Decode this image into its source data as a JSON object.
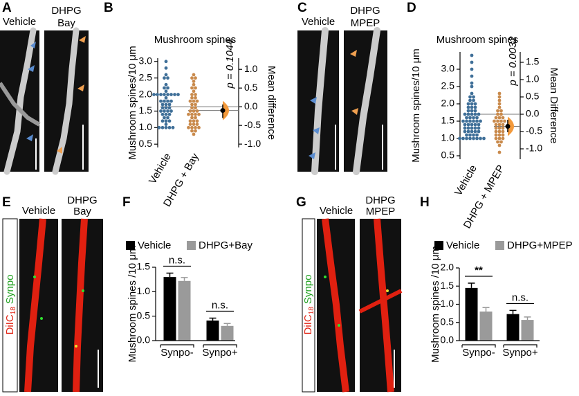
{
  "panel_letters": [
    "A",
    "B",
    "C",
    "D",
    "E",
    "F",
    "G",
    "H"
  ],
  "images": {
    "A": {
      "labels": [
        "Vehicle",
        "DHPG",
        "Bay"
      ]
    },
    "C": {
      "labels": [
        "Vehicle",
        "DHPG",
        "MPEP"
      ]
    },
    "E": {
      "labels": [
        "Vehicle",
        "DHPG",
        "Bay"
      ],
      "stain": [
        "DiIC",
        "18",
        "Synpo"
      ]
    },
    "G": {
      "labels": [
        "Vehicle",
        "DHPG",
        "MPEP"
      ],
      "stain": [
        "DiIC",
        "18",
        "Synpo"
      ]
    }
  },
  "chart_data": [
    {
      "type": "swarm",
      "title": "Mushroom spines",
      "ylabel": "Mushroom spines/10 μm",
      "y2label": "Mean difference",
      "categories": [
        "Vehicle",
        "DHPG + Bay"
      ],
      "groups": [
        {
          "color": "#3f6f98",
          "values": [
            1.0,
            1.0,
            1.0,
            1.0,
            1.0,
            1.1,
            1.2,
            1.2,
            1.2,
            1.3,
            1.3,
            1.4,
            1.4,
            1.4,
            1.5,
            1.5,
            1.5,
            1.5,
            1.6,
            1.6,
            1.6,
            1.7,
            1.7,
            1.7,
            1.8,
            1.8,
            1.8,
            1.8,
            1.9,
            2.0,
            2.0,
            2.0,
            2.0,
            2.0,
            2.0,
            2.0,
            2.0,
            2.1,
            2.2,
            2.2,
            2.3,
            2.5,
            2.5,
            2.6,
            2.8,
            3.0
          ]
        },
        {
          "color": "#c98a4c",
          "values": [
            0.8,
            0.9,
            0.9,
            1.0,
            1.0,
            1.0,
            1.0,
            1.1,
            1.1,
            1.1,
            1.2,
            1.2,
            1.2,
            1.3,
            1.3,
            1.4,
            1.4,
            1.4,
            1.4,
            1.5,
            1.5,
            1.5,
            1.6,
            1.6,
            1.7,
            1.7,
            1.8,
            1.8,
            1.8,
            1.9,
            1.9,
            2.0,
            2.0,
            2.1,
            2.2,
            2.2,
            2.3,
            2.4,
            2.5,
            2.5,
            2.6
          ]
        }
      ],
      "mean_difference": -0.1,
      "ci": [
        -0.3,
        0.06
      ],
      "p_label": "p = 0.1044",
      "ylim": [
        0.4,
        3.1
      ],
      "yticks": [
        0.5,
        {
          "value": 1.0,
          "label": "1.0"
        },
        1.5,
        {
          "value": 2.0,
          "label": "2.0"
        },
        2.5,
        {
          "value": 3.0,
          "label": "3.0"
        }
      ],
      "y2lim": [
        -1.09,
        1.3
      ],
      "y2ticks": [
        {
          "value": 1.0,
          "label": "1.0"
        },
        0.5,
        {
          "value": 0.0,
          "label": "0.0"
        },
        -0.5,
        {
          "value": -1.0,
          "label": "-1.0"
        }
      ]
    },
    {
      "type": "swarm",
      "title": "Mushroom spines",
      "ylabel": "Mushroom spines/10 μm",
      "y2label": "Mean Difference",
      "categories": [
        "Vehicle",
        "DHPG + MPEP"
      ],
      "groups": [
        {
          "color": "#3f6f98",
          "values": [
            1.0,
            1.0,
            1.0,
            1.0,
            1.0,
            1.0,
            1.0,
            1.0,
            1.1,
            1.1,
            1.1,
            1.1,
            1.2,
            1.2,
            1.2,
            1.2,
            1.2,
            1.3,
            1.3,
            1.3,
            1.3,
            1.3,
            1.4,
            1.4,
            1.4,
            1.4,
            1.4,
            1.5,
            1.5,
            1.5,
            1.5,
            1.5,
            1.5,
            1.6,
            1.6,
            1.6,
            1.6,
            1.7,
            1.7,
            1.7,
            1.7,
            1.7,
            1.8,
            1.8,
            1.8,
            1.9,
            1.9,
            1.9,
            2.0,
            2.0,
            2.0,
            2.1,
            2.1,
            2.2,
            2.2,
            2.3,
            2.5,
            2.6,
            2.8,
            3.0,
            3.2,
            3.4
          ]
        },
        {
          "color": "#c98a4c",
          "values": [
            0.6,
            0.8,
            0.9,
            0.9,
            1.0,
            1.0,
            1.0,
            1.1,
            1.1,
            1.1,
            1.2,
            1.2,
            1.2,
            1.3,
            1.3,
            1.3,
            1.4,
            1.4,
            1.4,
            1.5,
            1.5,
            1.5,
            1.5,
            1.6,
            1.6,
            1.6,
            1.7,
            1.7,
            1.8,
            1.8,
            1.9,
            2.0,
            2.1,
            2.2,
            2.3
          ]
        }
      ],
      "mean_difference": -0.35,
      "ci": [
        -0.52,
        -0.16
      ],
      "p_label": "p = 0.0032",
      "ylim": [
        0.4,
        3.5
      ],
      "yticks": [
        0.5,
        {
          "value": 1.0,
          "label": "1.0"
        },
        1.5,
        {
          "value": 2.0,
          "label": "2.0"
        },
        2.5,
        {
          "value": 3.0,
          "label": "3.0"
        }
      ],
      "y2lim": [
        -1.3,
        1.8
      ],
      "y2ticks": [
        1.5,
        {
          "value": 1.0,
          "label": "1.0"
        },
        0.5,
        {
          "value": 0.0,
          "label": "0.0"
        },
        -0.5,
        {
          "value": -1.0,
          "label": "-1.0"
        }
      ]
    },
    {
      "type": "bar",
      "ylabel": "Mushroom spines /10 μm",
      "categories": [
        "Synpo-",
        "Synpo+"
      ],
      "series": [
        {
          "name": "Vehicle",
          "color": "#000000",
          "values": [
            1.3,
            0.41
          ],
          "errors": [
            0.08,
            0.05
          ]
        },
        {
          "name": "DHPG+Bay",
          "color": "#9a9a9a",
          "values": [
            1.22,
            0.3
          ],
          "errors": [
            0.07,
            0.05
          ]
        }
      ],
      "significance": [
        "n.s.",
        "n.s."
      ],
      "ylim": [
        0,
        1.5
      ],
      "yticks": [
        {
          "value": 0.0,
          "label": "0.0"
        },
        0.5,
        {
          "value": 1.0,
          "label": "1.0"
        },
        1.5
      ]
    },
    {
      "type": "bar",
      "ylabel": "Mushroom spines /10 μm",
      "categories": [
        "Synpo-",
        "Synpo+"
      ],
      "series": [
        {
          "name": "Vehicle",
          "color": "#000000",
          "values": [
            1.45,
            0.73
          ],
          "errors": [
            0.13,
            0.1
          ]
        },
        {
          "name": "DHPG+MPEP",
          "color": "#9a9a9a",
          "values": [
            0.8,
            0.57
          ],
          "errors": [
            0.11,
            0.08
          ]
        }
      ],
      "significance": [
        "**",
        "n.s."
      ],
      "ylim": [
        0,
        2.0
      ],
      "yticks": [
        {
          "value": 0.0,
          "label": "0.0"
        },
        0.5,
        {
          "value": 1.0,
          "label": "1.0"
        },
        1.5,
        {
          "value": 2.0,
          "label": "2.0"
        }
      ]
    }
  ]
}
